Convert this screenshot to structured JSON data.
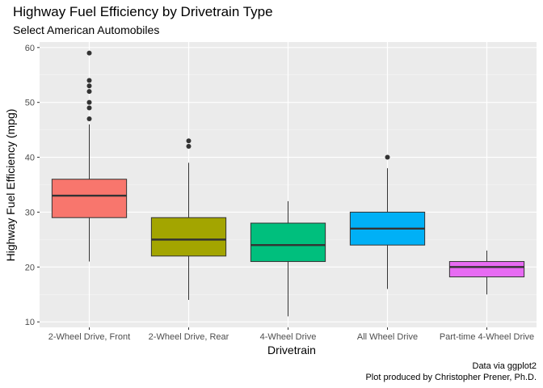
{
  "chart_data": {
    "type": "boxplot",
    "title": "Highway Fuel Efficiency by Drivetrain Type",
    "subtitle": "Select American Automobiles",
    "xlabel": "Drivetrain",
    "ylabel": "Highway Fuel Efficiency (mpg)",
    "ylim": [
      9,
      61
    ],
    "yticks": [
      10,
      20,
      30,
      40,
      50,
      60
    ],
    "grid": true,
    "caption": [
      "Data via ggplot2",
      "Plot produced by Christopher Prener, Ph.D."
    ],
    "categories": [
      "2-Wheel Drive, Front",
      "2-Wheel Drive, Rear",
      "4-Wheel Drive",
      "All Wheel Drive",
      "Part-time 4-Wheel Drive"
    ],
    "boxes": [
      {
        "category": "2-Wheel Drive, Front",
        "color": "#F8766D",
        "min": 21,
        "q1": 29,
        "median": 33,
        "q3": 36,
        "max": 46,
        "outliers": [
          47,
          49,
          50,
          52,
          53,
          54,
          59
        ]
      },
      {
        "category": "2-Wheel Drive, Rear",
        "color": "#A3A500",
        "min": 14,
        "q1": 22,
        "median": 25,
        "q3": 29,
        "max": 39,
        "outliers": [
          42,
          43
        ]
      },
      {
        "category": "4-Wheel Drive",
        "color": "#00BF7D",
        "min": 11,
        "q1": 21,
        "median": 24,
        "q3": 28,
        "max": 32,
        "outliers": []
      },
      {
        "category": "All Wheel Drive",
        "color": "#00B0F6",
        "min": 16,
        "q1": 24,
        "median": 27,
        "q3": 30,
        "max": 38,
        "outliers": [
          40
        ]
      },
      {
        "category": "Part-time 4-Wheel Drive",
        "color": "#E76BF3",
        "min": 15,
        "q1": 18.2,
        "median": 20,
        "q3": 21,
        "max": 23,
        "outliers": []
      }
    ]
  }
}
